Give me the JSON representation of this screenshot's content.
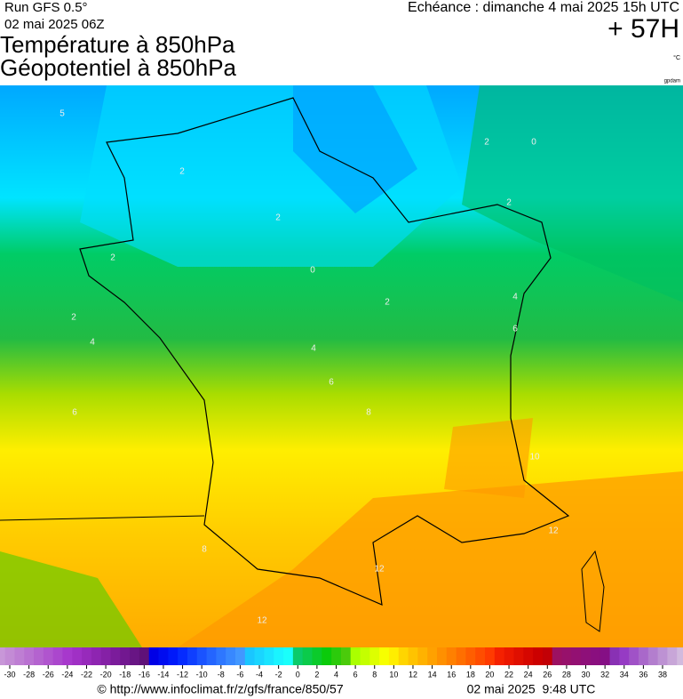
{
  "header": {
    "run": "Run GFS 0.5°",
    "run_date": "02 mai 2025 06Z",
    "title_1": "Température à 850hPa",
    "title_2": "Géopotentiel à 850hPa",
    "forecast": "Echéance : dimanche 4 mai 2025 15h UTC",
    "lead_time": "+ 57H",
    "unit": "°C",
    "credit": "gpdam"
  },
  "map": {
    "contour_labels": [
      "5",
      "2",
      "2",
      "2",
      "0",
      "2",
      "2",
      "0",
      "2",
      "4",
      "2",
      "4",
      "4",
      "6",
      "6",
      "6",
      "8",
      "10",
      "12",
      "12",
      "12",
      "8"
    ]
  },
  "colorbar": {
    "ticks": [
      -30,
      -28,
      -26,
      -24,
      -22,
      -20,
      -18,
      -16,
      -14,
      -12,
      -10,
      -8,
      -6,
      -4,
      -2,
      0,
      2,
      4,
      6,
      8,
      10,
      12,
      14,
      16,
      18,
      20,
      22,
      24,
      26,
      28,
      30,
      32,
      34,
      36,
      38
    ]
  },
  "footer": {
    "url": "© http://www.infoclimat.fr/z/gfs/france/850/57",
    "date": "02 mai 2025  9:48 UTC"
  }
}
